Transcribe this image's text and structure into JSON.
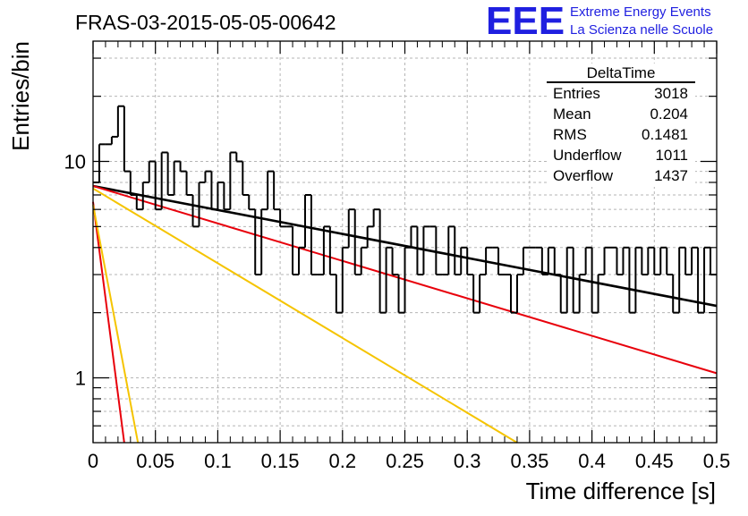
{
  "chart_data": {
    "type": "histogram",
    "title": "FRAS-03-2015-05-05-00642",
    "xlabel": "Time difference [s]",
    "ylabel": "Entries/bin",
    "xlim": [
      0,
      0.5
    ],
    "ylim": [
      0.5,
      35
    ],
    "yscale": "log",
    "grid": true,
    "x_ticks": [
      "0",
      "0.05",
      "0.1",
      "0.15",
      "0.2",
      "0.25",
      "0.3",
      "0.35",
      "0.4",
      "0.45",
      "0.5"
    ],
    "y_ticks": [
      "1",
      "10"
    ],
    "bin_width": 0.005,
    "bin_start": 0,
    "bin_values": [
      8,
      12,
      12,
      13,
      18,
      9,
      7,
      6,
      8,
      10,
      6,
      11,
      7,
      10,
      9,
      7,
      5,
      8,
      9,
      6,
      8,
      6,
      11,
      10,
      7,
      6,
      3,
      6,
      9,
      6,
      5,
      5,
      3,
      4,
      7,
      3,
      3,
      5,
      3,
      2,
      4,
      6,
      3,
      4,
      5,
      6,
      2,
      4,
      3,
      2,
      4,
      5,
      3,
      5,
      5,
      3,
      3,
      5,
      3,
      4,
      3,
      2,
      3,
      4,
      4,
      3,
      3,
      2,
      3,
      4,
      4,
      4,
      3,
      4,
      3,
      2,
      4,
      2,
      3,
      4,
      2,
      3,
      4,
      4,
      3,
      4,
      2,
      4,
      3,
      4,
      3,
      4,
      3,
      2,
      4,
      3,
      4,
      2,
      4,
      3
    ],
    "fits": [
      {
        "color": "#000000",
        "y0": 7.7,
        "y_end": 2.15
      },
      {
        "color": "#e8000b",
        "y0": 7.7,
        "y_end": 1.05
      },
      {
        "color": "#f5c400",
        "y0": 7.5,
        "x_end": 0.34,
        "y_end_at_x": 0.5
      },
      {
        "color": "#e8000b",
        "y0": 6.5,
        "x_end": 0.025,
        "y_end_at_x": 0.5
      },
      {
        "color": "#f5c400",
        "y0": 6.3,
        "x_end": 0.036,
        "y_end_at_x": 0.5
      }
    ]
  },
  "stats_box": {
    "title": "DeltaTime",
    "rows": [
      {
        "label": "Entries",
        "value": "3018"
      },
      {
        "label": "Mean",
        "value": "0.204"
      },
      {
        "label": "RMS",
        "value": "0.1481"
      },
      {
        "label": "Underflow",
        "value": "1011"
      },
      {
        "label": "Overflow",
        "value": "1437"
      }
    ]
  },
  "logo": {
    "mark": "EEE",
    "line1": "Extreme Energy Events",
    "line2": "La Scienza nelle Scuole",
    "color": "#1f1fe0"
  }
}
